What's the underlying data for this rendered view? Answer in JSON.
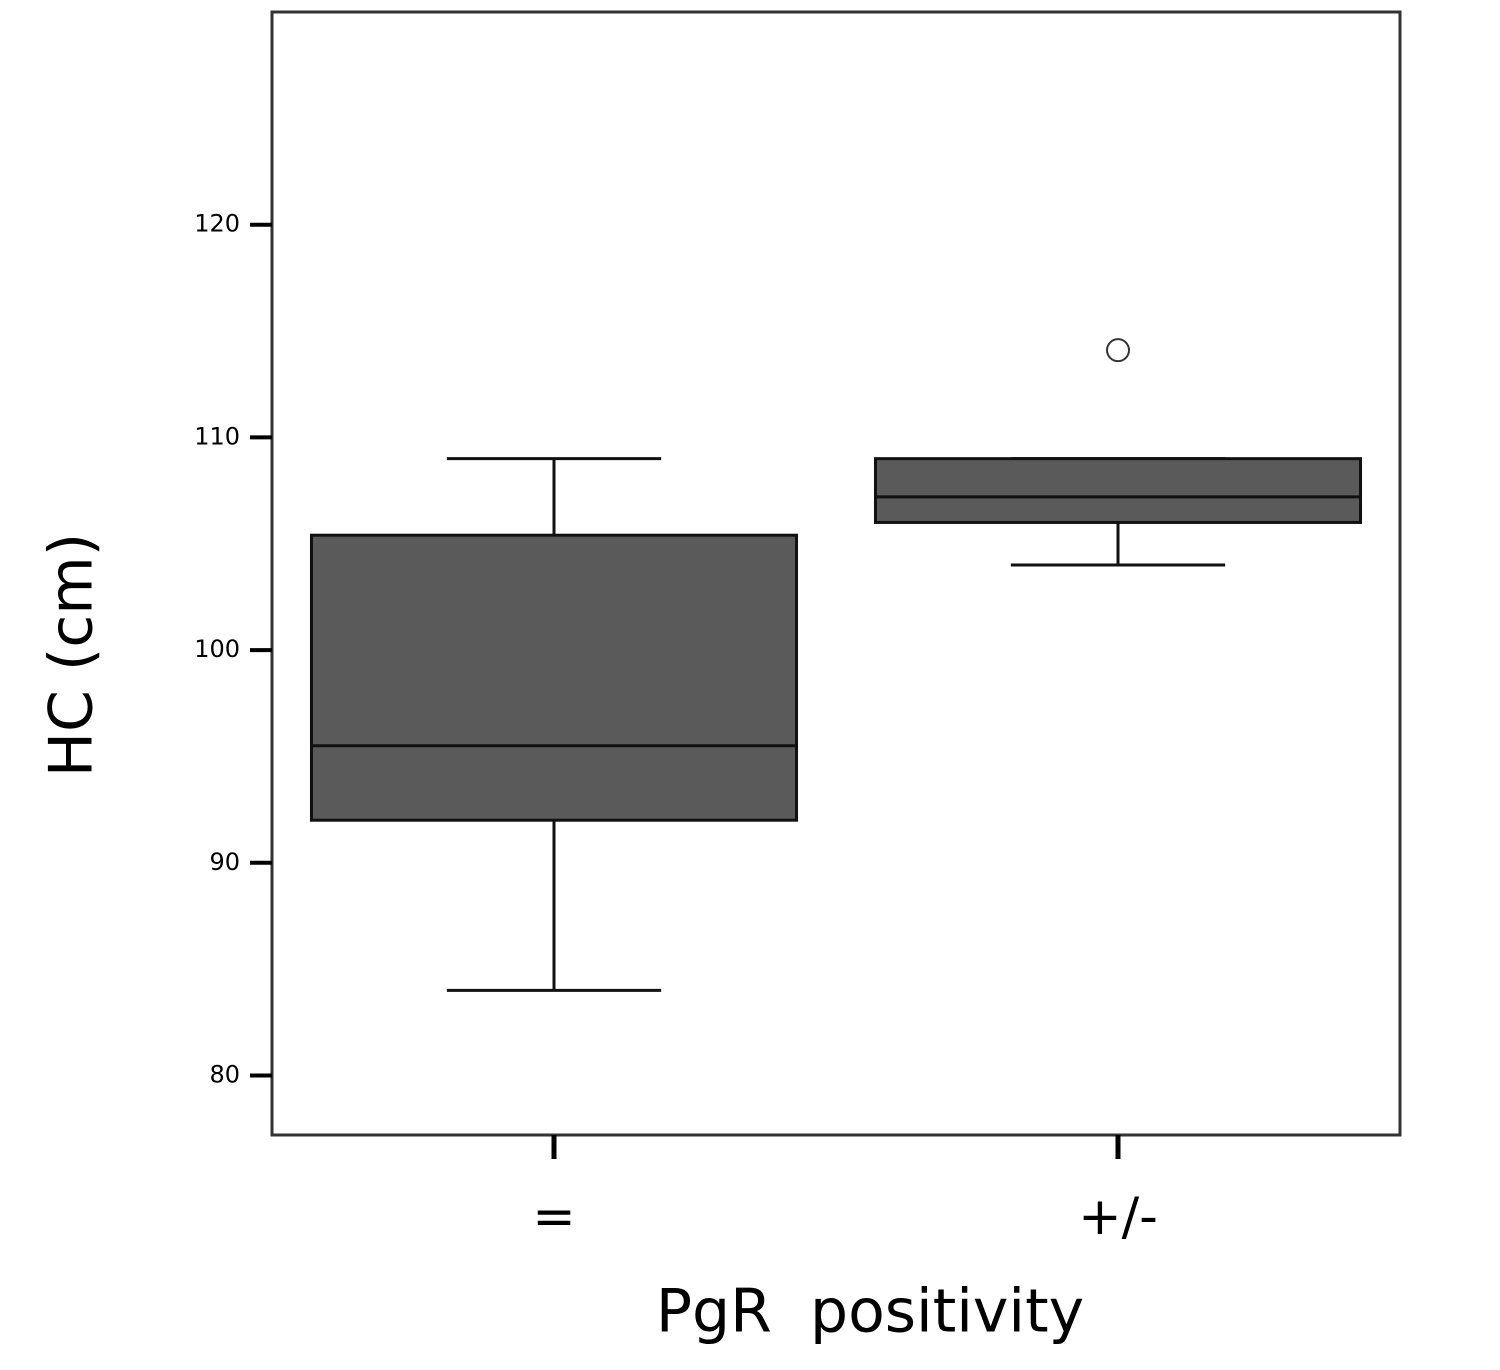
{
  "chart_data": {
    "type": "box",
    "x_label": "PgR  positivity",
    "y_label": "HC (cm)",
    "categories": [
      "=",
      "+/-"
    ],
    "boxes": [
      {
        "whislo": 84,
        "q1": 92,
        "med": 95.5,
        "q3": 105.4,
        "whishi": 109,
        "fliers": []
      },
      {
        "whislo": 104,
        "q1": 106,
        "med": 107.2,
        "q3": 109,
        "whishi": 109,
        "fliers": [
          114.1
        ]
      }
    ],
    "color": "#5a5a5a",
    "ylim": [
      77.2,
      130
    ],
    "yticks": [
      80,
      90,
      100,
      110,
      120
    ]
  }
}
